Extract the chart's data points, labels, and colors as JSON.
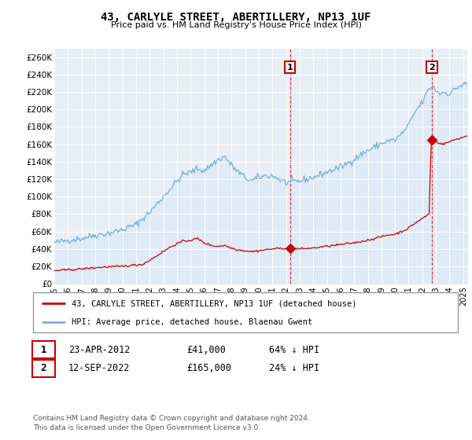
{
  "title": "43, CARLYLE STREET, ABERTILLERY, NP13 1UF",
  "subtitle": "Price paid vs. HM Land Registry's House Price Index (HPI)",
  "ylabel_ticks": [
    "£0",
    "£20K",
    "£40K",
    "£60K",
    "£80K",
    "£100K",
    "£120K",
    "£140K",
    "£160K",
    "£180K",
    "£200K",
    "£220K",
    "£240K",
    "£260K"
  ],
  "ytick_vals": [
    0,
    20000,
    40000,
    60000,
    80000,
    100000,
    120000,
    140000,
    160000,
    180000,
    200000,
    220000,
    240000,
    260000
  ],
  "ylim": [
    0,
    270000
  ],
  "hpi_color": "#7aaedc",
  "hpi_fill_color": "#ddeaf5",
  "price_color": "#cc0000",
  "background_color": "#e8eef6",
  "legend_label_price": "43, CARLYLE STREET, ABERTILLERY, NP13 1UF (detached house)",
  "legend_label_hpi": "HPI: Average price, detached house, Blaenau Gwent",
  "sale1_date": "23-APR-2012",
  "sale1_price": "£41,000",
  "sale1_pct": "64% ↓ HPI",
  "sale2_date": "12-SEP-2022",
  "sale2_price": "£165,000",
  "sale2_pct": "24% ↓ HPI",
  "footer": "Contains HM Land Registry data © Crown copyright and database right 2024.\nThis data is licensed under the Open Government Licence v3.0.",
  "xmin": 1995.0,
  "xmax": 2025.3,
  "xticks": [
    1995,
    1996,
    1997,
    1998,
    1999,
    2000,
    2001,
    2002,
    2003,
    2004,
    2005,
    2006,
    2007,
    2008,
    2009,
    2010,
    2011,
    2012,
    2013,
    2014,
    2015,
    2016,
    2017,
    2018,
    2019,
    2020,
    2021,
    2022,
    2023,
    2024,
    2025
  ],
  "sale1_x": 2012.3,
  "sale1_y": 41000,
  "sale2_x": 2022.7,
  "sale2_y": 165000
}
